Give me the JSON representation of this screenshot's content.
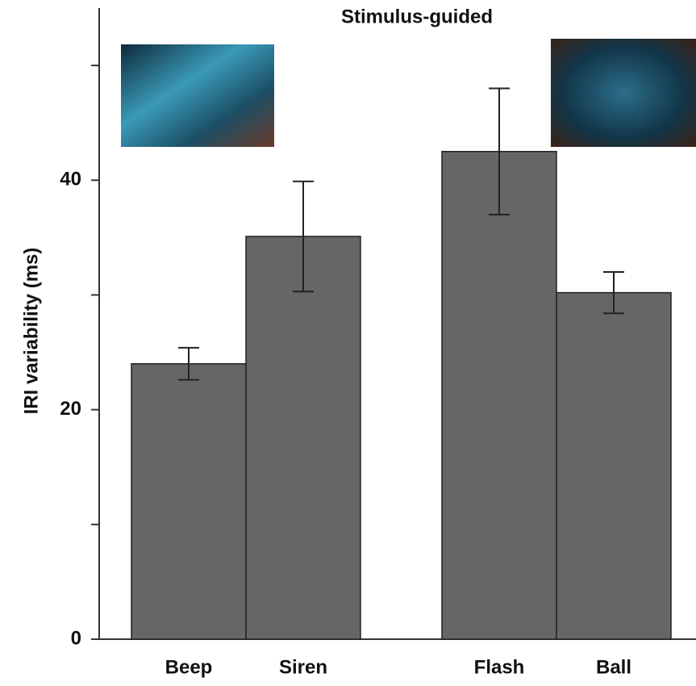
{
  "chart_data": {
    "type": "bar",
    "title": "Stimulus-guided",
    "ylabel": "IRI variability (ms)",
    "categories": [
      "Beep",
      "Siren",
      "Flash",
      "Ball"
    ],
    "values": [
      24.0,
      35.1,
      42.5,
      30.2
    ],
    "errors": [
      1.4,
      4.8,
      5.5,
      1.8
    ],
    "color": "#666666",
    "ylim": [
      0,
      55
    ],
    "yticks": [
      0,
      20,
      40
    ],
    "minor_yticks": [
      10,
      30,
      50
    ],
    "grid": false
  }
}
